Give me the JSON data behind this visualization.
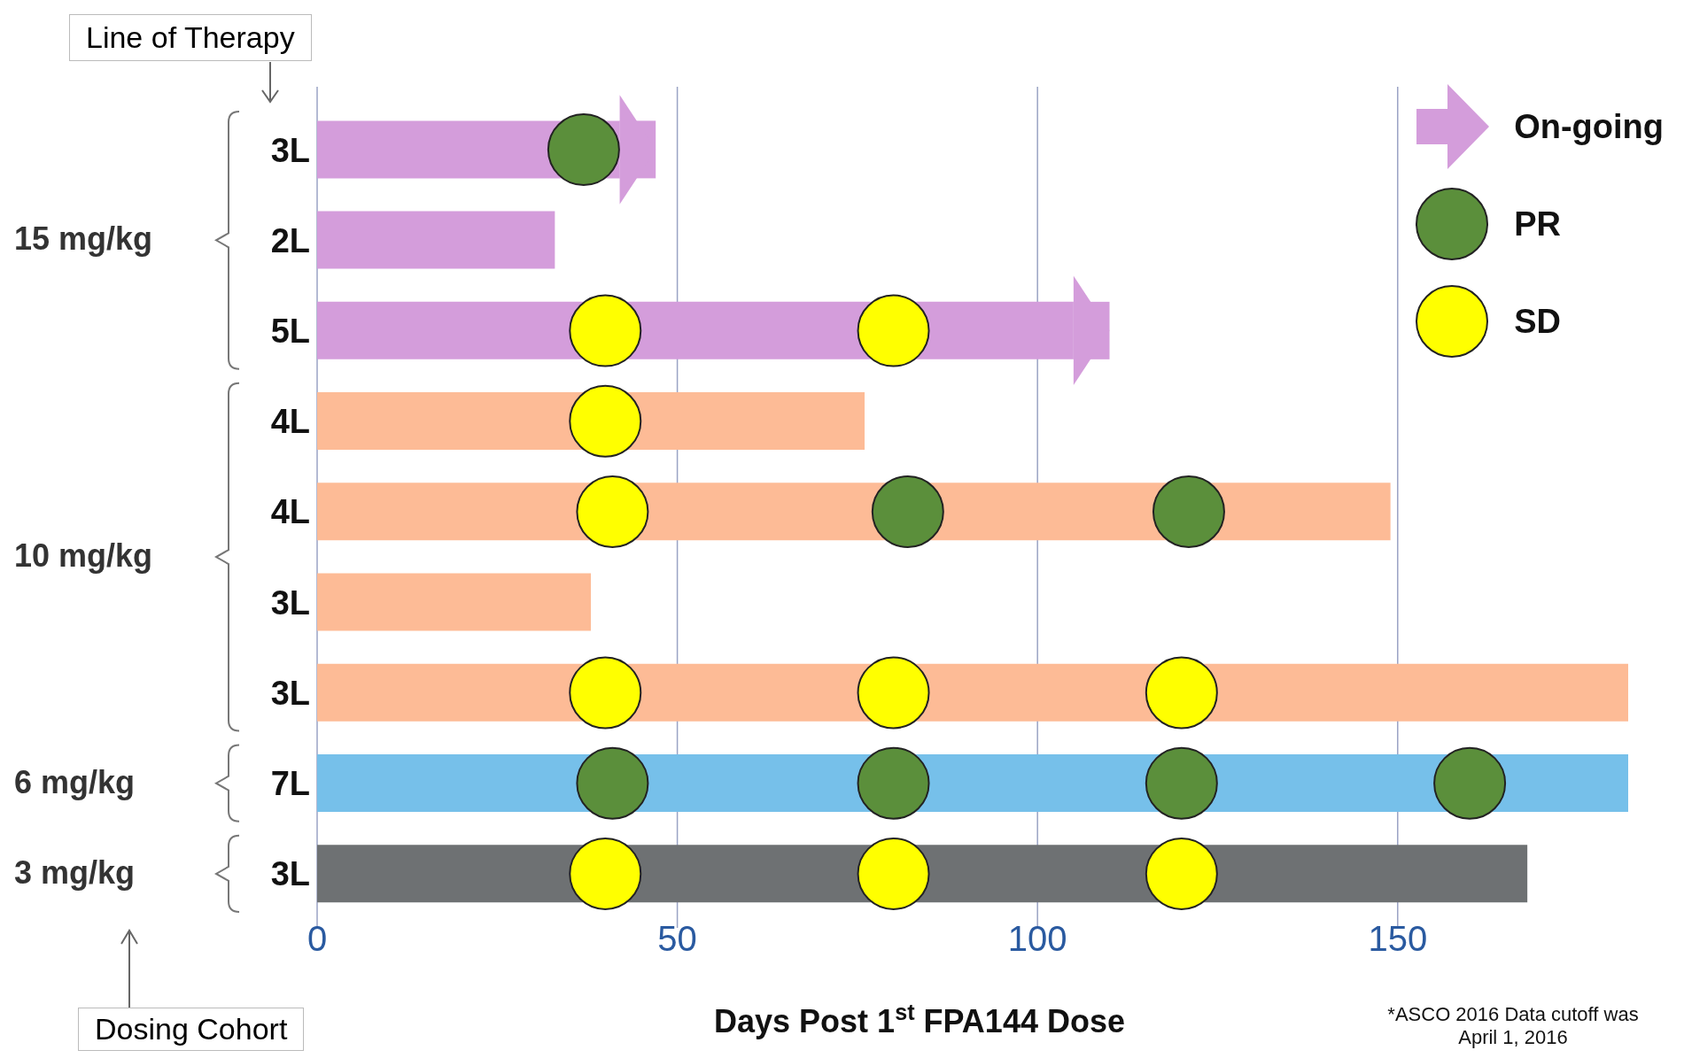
{
  "chart_data": {
    "type": "bar",
    "orientation": "horizontal",
    "stacked": true,
    "xlabel": "Days Post 1$^{st}$ FPA144 Dose",
    "categories": [
      "3L",
      "2L",
      "5L",
      "4L",
      "4L",
      "3L",
      "3L",
      "7L",
      "3L"
    ],
    "series": [
      {
        "colors": [
          "#d49ddb",
          "#d49ddb",
          "#d49ddb",
          "#fdbb96",
          "#fdbb96",
          "#fdbb96",
          "#fdbb96",
          "#76c0ea",
          "#6e7173"
        ],
        "values": [
          42,
          33,
          105,
          76,
          149,
          38,
          182,
          182,
          168
        ]
      },
      {
        "name": "On-going",
        "color": "#d49ddb",
        "values": [
          5,
          null,
          5,
          null,
          null,
          null,
          null,
          null,
          null
        ]
      },
      {
        "type": "scatter",
        "name": "PR",
        "color": "#5b8f3b",
        "values": [
          37,
          null,
          null,
          null,
          82,
          null,
          null,
          41,
          null
        ]
      },
      {
        "type": "scatter",
        "color": "#5b8f3b",
        "values": [
          null,
          null,
          null,
          null,
          121,
          null,
          null,
          80,
          null
        ]
      },
      {
        "type": "scatter",
        "color": "#5b8f3b",
        "values": [
          null,
          null,
          null,
          null,
          null,
          null,
          null,
          120,
          null
        ]
      },
      {
        "type": "scatter",
        "color": "#5b8f3b",
        "values": [
          null,
          null,
          null,
          null,
          null,
          null,
          null,
          160,
          null
        ]
      },
      {
        "type": "scatter",
        "name": "SD",
        "color": "#ffff00",
        "values": [
          null,
          null,
          40,
          40,
          41,
          null,
          40,
          null,
          40
        ]
      },
      {
        "type": "scatter",
        "color": "#ffff00",
        "values": [
          null,
          null,
          80,
          null,
          null,
          null,
          80,
          null,
          80
        ]
      },
      {
        "type": "scatter",
        "color": "#ffff00",
        "values": [
          null,
          null,
          null,
          null,
          null,
          null,
          120,
          null,
          120
        ]
      }
    ],
    "xlim": [
      0,
      182
    ],
    "xticks": [
      0,
      50,
      100,
      150
    ],
    "grid": "x",
    "legend": "top right",
    "marker": "circle",
    "annotations": [
      "Line of Therapy",
      "15 mg/kg",
      "10 mg/kg",
      "6 mg/kg",
      "3 mg/kg",
      "Dosing Cohort",
      "*ASCO 2016 Data cutoff was April 1, 2016"
    ]
  }
}
